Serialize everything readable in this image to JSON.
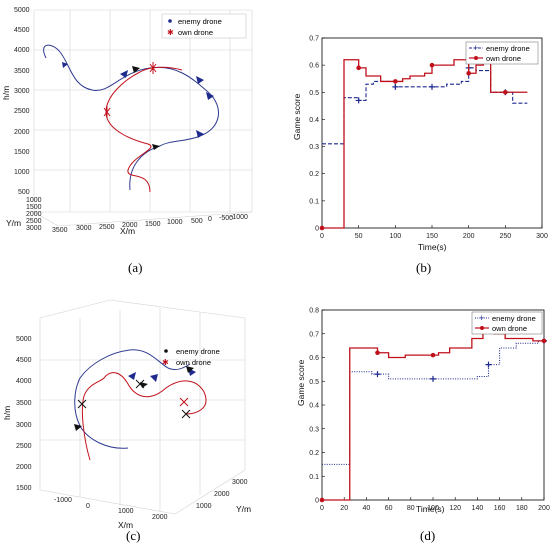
{
  "panel_labels": [
    "(a)",
    "(b)",
    "(c)",
    "(d)"
  ],
  "colors": {
    "enemy": "#1f2a8f",
    "own": "#c0111b",
    "grid3d": "#cfcfcf"
  },
  "chart_data": [
    {
      "id": "a",
      "type": "line3d",
      "legend": [
        "enemy drone",
        "own drone"
      ],
      "legend_placement": "top-center",
      "zlabel": "h/m",
      "xlabel": "X/m",
      "ylabel": "Y/m",
      "ztick_labels": [
        "5000",
        "4500",
        "4000",
        "3500",
        "3000",
        "2500",
        "2000",
        "1500",
        "1000",
        "500"
      ],
      "xtick_labels": [
        "3500",
        "3000",
        "2500",
        "2000",
        "1500",
        "1000",
        "500",
        "0",
        "-500",
        "-1000"
      ],
      "ytick_labels": [
        "1000",
        "1500",
        "2000",
        "2500",
        "3000"
      ]
    },
    {
      "id": "b",
      "type": "line",
      "step": true,
      "ylabel": "Game score",
      "xlabel": "Time(s)",
      "xlim": [
        0,
        300
      ],
      "ylim": [
        0,
        0.7
      ],
      "xticks": [
        0,
        50,
        100,
        150,
        200,
        250,
        300
      ],
      "yticks": [
        0,
        0.1,
        0.2,
        0.3,
        0.4,
        0.5,
        0.6,
        0.7
      ],
      "legend_placement": "top-right",
      "series": [
        {
          "name": "enemy drone",
          "style": "dashed",
          "marker": "+",
          "x": [
            0,
            10,
            20,
            30,
            40,
            50,
            60,
            70,
            80,
            90,
            100,
            110,
            120,
            130,
            140,
            150,
            160,
            170,
            180,
            190,
            200,
            210,
            220,
            230,
            240,
            250,
            260,
            270,
            280
          ],
          "y": [
            0.31,
            0.31,
            0.31,
            0.48,
            0.48,
            0.47,
            0.53,
            0.54,
            0.54,
            0.54,
            0.52,
            0.52,
            0.52,
            0.52,
            0.52,
            0.52,
            0.52,
            0.53,
            0.53,
            0.54,
            0.59,
            0.58,
            0.58,
            0.5,
            0.5,
            0.5,
            0.46,
            0.46,
            0.46
          ],
          "markers_x": [
            50,
            100,
            150,
            200,
            250
          ]
        },
        {
          "name": "own drone",
          "style": "solid",
          "marker": "o",
          "x": [
            0,
            10,
            20,
            30,
            40,
            50,
            60,
            70,
            80,
            90,
            100,
            110,
            120,
            130,
            140,
            150,
            160,
            170,
            180,
            190,
            200,
            210,
            220,
            230,
            240,
            250,
            260,
            270,
            280
          ],
          "y": [
            0,
            0,
            0,
            0.62,
            0.62,
            0.59,
            0.56,
            0.56,
            0.54,
            0.54,
            0.54,
            0.55,
            0.56,
            0.56,
            0.57,
            0.6,
            0.6,
            0.6,
            0.62,
            0.62,
            0.57,
            0.6,
            0.61,
            0.5,
            0.5,
            0.5,
            0.5,
            0.5,
            0.5
          ],
          "markers_x": [
            0,
            50,
            100,
            150,
            200,
            250
          ]
        }
      ]
    },
    {
      "id": "c",
      "type": "line3d",
      "legend": [
        "enemy drone",
        "own drone"
      ],
      "legend_placement": "top-center",
      "zlabel": "h/m",
      "xlabel": "X/m",
      "ylabel": "Y/m",
      "ztick_labels": [
        "5000",
        "4500",
        "4000",
        "3500",
        "3000",
        "2500",
        "2000",
        "1500"
      ],
      "xtick_labels": [
        "-1000",
        "0",
        "1000",
        "2000"
      ],
      "ytick_labels": [
        "1000",
        "2000",
        "3000"
      ]
    },
    {
      "id": "d",
      "type": "line",
      "step": true,
      "ylabel": "Game score",
      "xlabel": "Time(s)",
      "xlim": [
        0,
        200
      ],
      "ylim": [
        0,
        0.8
      ],
      "xticks": [
        0,
        20,
        40,
        60,
        80,
        100,
        120,
        140,
        160,
        180,
        200
      ],
      "yticks": [
        0,
        0.1,
        0.2,
        0.3,
        0.4,
        0.5,
        0.6,
        0.7,
        0.8
      ],
      "legend_placement": "top-right",
      "series": [
        {
          "name": "enemy drone",
          "style": "dotted",
          "marker": "+",
          "x": [
            0,
            5,
            10,
            15,
            20,
            25,
            30,
            35,
            40,
            45,
            50,
            55,
            60,
            65,
            70,
            75,
            80,
            85,
            90,
            95,
            100,
            105,
            110,
            115,
            120,
            125,
            130,
            135,
            140,
            145,
            150,
            155,
            160,
            165,
            170,
            175,
            180,
            185,
            190,
            195,
            200
          ],
          "y": [
            0.15,
            0.15,
            0.15,
            0.15,
            0.15,
            0.54,
            0.54,
            0.54,
            0.54,
            0.53,
            0.53,
            0.53,
            0.51,
            0.51,
            0.51,
            0.51,
            0.51,
            0.51,
            0.51,
            0.51,
            0.51,
            0.51,
            0.51,
            0.51,
            0.51,
            0.51,
            0.51,
            0.51,
            0.52,
            0.52,
            0.57,
            0.57,
            0.64,
            0.64,
            0.64,
            0.66,
            0.66,
            0.66,
            0.66,
            0.67,
            0.67
          ],
          "markers_x": [
            50,
            100,
            150,
            200
          ]
        },
        {
          "name": "own drone",
          "style": "solid",
          "marker": "o",
          "x": [
            0,
            5,
            10,
            15,
            20,
            25,
            30,
            35,
            40,
            45,
            50,
            55,
            60,
            65,
            70,
            75,
            80,
            85,
            90,
            95,
            100,
            105,
            110,
            115,
            120,
            125,
            130,
            135,
            140,
            145,
            150,
            155,
            160,
            165,
            170,
            175,
            180,
            185,
            190,
            195,
            200
          ],
          "y": [
            0,
            0,
            0,
            0,
            0,
            0.64,
            0.64,
            0.64,
            0.64,
            0.64,
            0.62,
            0.62,
            0.6,
            0.6,
            0.6,
            0.61,
            0.61,
            0.61,
            0.61,
            0.61,
            0.61,
            0.62,
            0.62,
            0.64,
            0.64,
            0.64,
            0.64,
            0.68,
            0.68,
            0.71,
            0.71,
            0.7,
            0.7,
            0.68,
            0.68,
            0.68,
            0.68,
            0.68,
            0.67,
            0.67,
            0.67
          ],
          "markers_x": [
            0,
            50,
            100,
            150,
            200
          ]
        }
      ]
    }
  ]
}
